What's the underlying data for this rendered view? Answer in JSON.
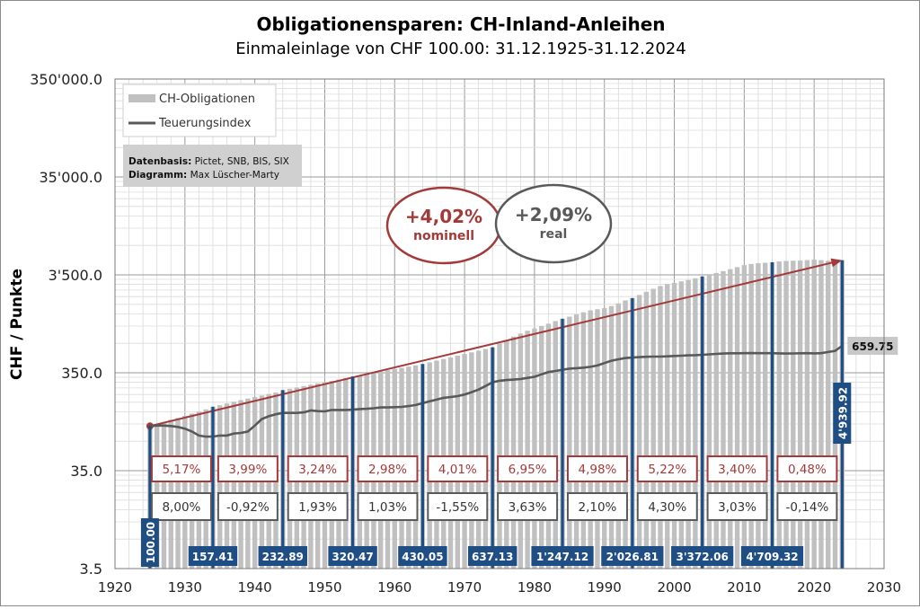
{
  "chart_data": {
    "type": "bar",
    "title": "Obligationensparen:  CH-Inland-Anleihen",
    "subtitle": "Einmaleinlage von CHF 100.00: 31.12.1925-31.12.2024",
    "ylabel": "CHF / Punkte",
    "xlabel": "",
    "yscale": "log",
    "ylim": [
      3.5,
      350000
    ],
    "xlim": [
      1920,
      2030
    ],
    "y_ticks": [
      "3.5",
      "35.0",
      "350.0",
      "3'500.0",
      "35'000.0",
      "350'000.0"
    ],
    "x_ticks": [
      "1920",
      "1930",
      "1940",
      "1950",
      "1960",
      "1970",
      "1980",
      "1990",
      "2000",
      "2010",
      "2020",
      "2030"
    ],
    "grid": true,
    "legend_position": "top-left",
    "legend": {
      "bars": "CH-Obligationen",
      "line": "Teuerungsindex"
    },
    "source_box": {
      "line1_label": "Datenbasis:",
      "line1_text": " Pictet, SNB, BIS, SIX",
      "line2_label": "Diagramm:",
      "line2_text": " Max Lüscher-Marty"
    },
    "colors": {
      "bars": "#c0c0c0",
      "highlight_bars": "#1f4e84",
      "line": "#595959",
      "trend": "#a33a3a",
      "nominal": "#a33a3a",
      "real": "#595959",
      "label_box": "#1f4e84"
    },
    "series": [
      {
        "name": "CH-Obligationen",
        "x": [
          1925,
          1926,
          1927,
          1928,
          1929,
          1930,
          1931,
          1932,
          1933,
          1934,
          1935,
          1936,
          1937,
          1938,
          1939,
          1940,
          1941,
          1942,
          1943,
          1944,
          1945,
          1946,
          1947,
          1948,
          1949,
          1950,
          1951,
          1952,
          1953,
          1954,
          1955,
          1956,
          1957,
          1958,
          1959,
          1960,
          1961,
          1962,
          1963,
          1964,
          1965,
          1966,
          1967,
          1968,
          1969,
          1970,
          1971,
          1972,
          1973,
          1974,
          1975,
          1976,
          1977,
          1978,
          1979,
          1980,
          1981,
          1982,
          1983,
          1984,
          1985,
          1986,
          1987,
          1988,
          1989,
          1990,
          1991,
          1992,
          1993,
          1994,
          1995,
          1996,
          1997,
          1998,
          1999,
          2000,
          2001,
          2002,
          2003,
          2004,
          2005,
          2006,
          2007,
          2008,
          2009,
          2010,
          2011,
          2012,
          2013,
          2014,
          2015,
          2016,
          2017,
          2018,
          2019,
          2020,
          2021,
          2022,
          2023,
          2024
        ],
        "values": [
          100,
          105,
          110,
          116,
          121,
          127,
          134,
          140,
          148,
          157.41,
          163,
          170,
          177,
          184,
          191,
          198,
          205,
          212,
          220,
          232.89,
          240,
          248,
          256,
          264,
          273,
          281,
          289,
          298,
          309,
          320.47,
          330,
          340,
          350,
          361,
          372,
          382,
          393,
          404,
          417,
          430.05,
          447,
          465,
          484,
          503,
          523,
          544,
          566,
          589,
          612,
          637.13,
          695,
          755,
          820,
          880,
          940,
          990,
          1050,
          1110,
          1180,
          1247.12,
          1310,
          1380,
          1450,
          1520,
          1560,
          1600,
          1680,
          1790,
          1920,
          2026.81,
          2180,
          2350,
          2520,
          2690,
          2820,
          2900,
          3000,
          3100,
          3230,
          3372.06,
          3500,
          3660,
          3820,
          4000,
          4200,
          4400,
          4520,
          4600,
          4650,
          4709.32,
          4800,
          4850,
          4880,
          4900,
          4950,
          5000,
          4950,
          4880,
          4900,
          4939.92
        ]
      },
      {
        "name": "Teuerungsindex",
        "x": [
          1925,
          1926,
          1927,
          1928,
          1929,
          1930,
          1931,
          1932,
          1933,
          1934,
          1935,
          1936,
          1937,
          1938,
          1939,
          1940,
          1941,
          1942,
          1943,
          1944,
          1945,
          1946,
          1947,
          1948,
          1949,
          1950,
          1951,
          1952,
          1953,
          1954,
          1955,
          1956,
          1957,
          1958,
          1959,
          1960,
          1961,
          1962,
          1963,
          1964,
          1965,
          1966,
          1967,
          1968,
          1969,
          1970,
          1971,
          1972,
          1973,
          1974,
          1975,
          1976,
          1977,
          1978,
          1979,
          1980,
          1981,
          1982,
          1983,
          1984,
          1985,
          1986,
          1987,
          1988,
          1989,
          1990,
          1991,
          1992,
          1993,
          1994,
          1995,
          1996,
          1997,
          1998,
          1999,
          2000,
          2001,
          2002,
          2003,
          2004,
          2005,
          2006,
          2007,
          2008,
          2009,
          2010,
          2011,
          2012,
          2013,
          2014,
          2015,
          2016,
          2017,
          2018,
          2019,
          2020,
          2021,
          2022,
          2023,
          2024
        ],
        "values": [
          100,
          101,
          101,
          100,
          98,
          94,
          88,
          80,
          78,
          78,
          80,
          80,
          84,
          85,
          88,
          101,
          118,
          126,
          132,
          136,
          136,
          136,
          138,
          144,
          142,
          141,
          146,
          146,
          146,
          147,
          149,
          150,
          152,
          155,
          155,
          156,
          157,
          160,
          164,
          171,
          179,
          186,
          194,
          198,
          202,
          210,
          222,
          236,
          256,
          280,
          290,
          295,
          298,
          302,
          310,
          318,
          338,
          356,
          365,
          375,
          386,
          390,
          395,
          402,
          415,
          440,
          465,
          480,
          495,
          500,
          505,
          510,
          512,
          512,
          515,
          520,
          523,
          527,
          530,
          534,
          540,
          545,
          550,
          553,
          553,
          555,
          556,
          555,
          555,
          555,
          552,
          550,
          551,
          553,
          555,
          552,
          555,
          570,
          585,
          659.75
        ]
      }
    ],
    "highlight_years": [
      1925,
      1934,
      1944,
      1954,
      1964,
      1974,
      1984,
      1994,
      2004,
      2014,
      2024
    ],
    "value_labels": [
      "100.00",
      "157.41",
      "232.89",
      "320.47",
      "430.05",
      "637.13",
      "1'247.12",
      "2'026.81",
      "3'372.06",
      "4'709.32",
      "4'939.92"
    ],
    "line_end_label": "659.75",
    "nominal_rates": [
      "5,17%",
      "3,99%",
      "3,24%",
      "2,98%",
      "4,01%",
      "6,95%",
      "4,98%",
      "5,22%",
      "3,40%",
      "0,48%"
    ],
    "real_rates": [
      "8,00%",
      "-0,92%",
      "1,93%",
      "1,03%",
      "-1,55%",
      "3,63%",
      "2,10%",
      "4,30%",
      "3,03%",
      "-0,14%"
    ],
    "summary": {
      "nominal_value": "+4,02%",
      "nominal_label": "nominell",
      "real_value": "+2,09%",
      "real_label": "real"
    }
  }
}
